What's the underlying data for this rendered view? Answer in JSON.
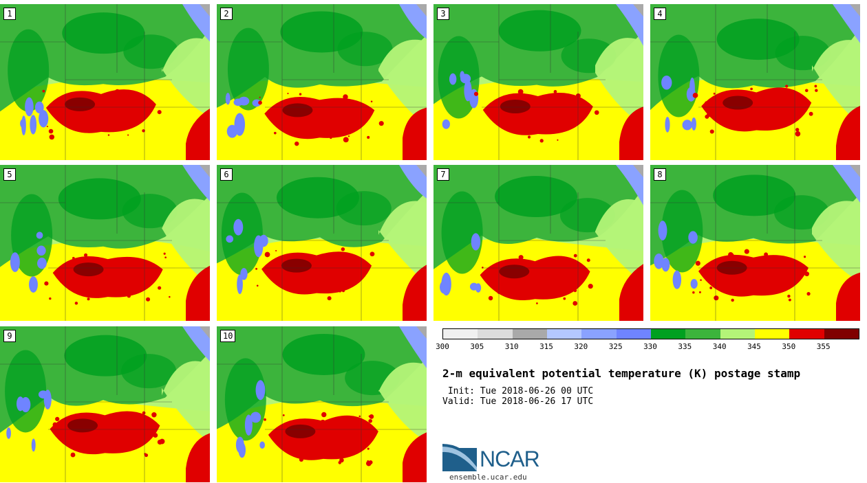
{
  "members": [
    "1",
    "2",
    "3",
    "4",
    "5",
    "6",
    "7",
    "8",
    "9",
    "10"
  ],
  "colorbar": {
    "colors": [
      "#f0f0f0",
      "#dcdcdc",
      "#a9a9a9",
      "#b4c8ff",
      "#8aa2ff",
      "#6f84ff",
      "#00a020",
      "#3cb43c",
      "#b4f478",
      "#ffff00",
      "#e00000",
      "#800000"
    ],
    "ticks": [
      "300",
      "305",
      "310",
      "315",
      "320",
      "325",
      "330",
      "335",
      "340",
      "345",
      "350",
      "355"
    ]
  },
  "title": "2-m equivalent potential temperature (K) postage stamp",
  "init": " Init: Tue 2018-06-26 00 UTC",
  "valid": "Valid: Tue 2018-06-26 17 UTC",
  "logo": {
    "name": "NCAR",
    "url": "ensemble.ucar.edu"
  }
}
